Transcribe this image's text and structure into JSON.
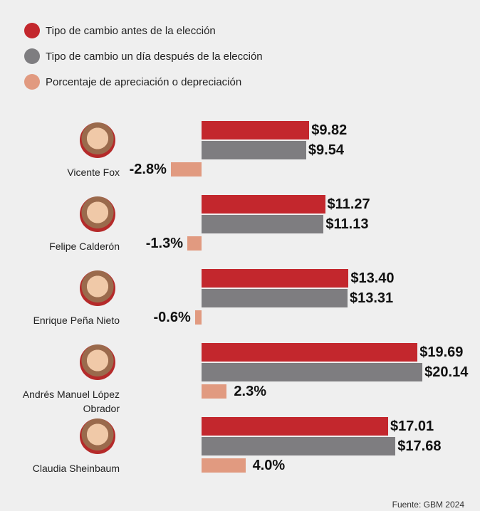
{
  "chart_data": {
    "type": "bar",
    "orientation": "horizontal",
    "categories": [
      "Vicente Fox",
      "Felipe Calderón",
      "Enrique Peña Nieto",
      "Andrés Manuel López Obrador",
      "Claudia Sheinbaum"
    ],
    "series": [
      {
        "name": "Tipo de cambio antes de la elección",
        "color": "#c3272d",
        "values": [
          9.82,
          11.27,
          13.4,
          19.69,
          17.01
        ],
        "value_labels": [
          "$9.82",
          "$11.27",
          "$13.40",
          "$19.69",
          "$17.01"
        ]
      },
      {
        "name": "Tipo de cambio un día después de la elección",
        "color": "#7e7d80",
        "values": [
          9.54,
          11.13,
          13.31,
          20.14,
          17.68
        ],
        "value_labels": [
          "$9.54",
          "$11.13",
          "$13.31",
          "$20.14",
          "$17.68"
        ]
      },
      {
        "name": "Porcentaje de apreciación o depreciación",
        "color": "#e19a80",
        "values": [
          -2.8,
          -1.3,
          -0.6,
          2.3,
          4.0
        ],
        "value_labels": [
          "-2.8%",
          "-1.3%",
          "-0.6%",
          "2.3%",
          "4.0%"
        ]
      }
    ],
    "source": "Fuente: GBM 2024"
  }
}
